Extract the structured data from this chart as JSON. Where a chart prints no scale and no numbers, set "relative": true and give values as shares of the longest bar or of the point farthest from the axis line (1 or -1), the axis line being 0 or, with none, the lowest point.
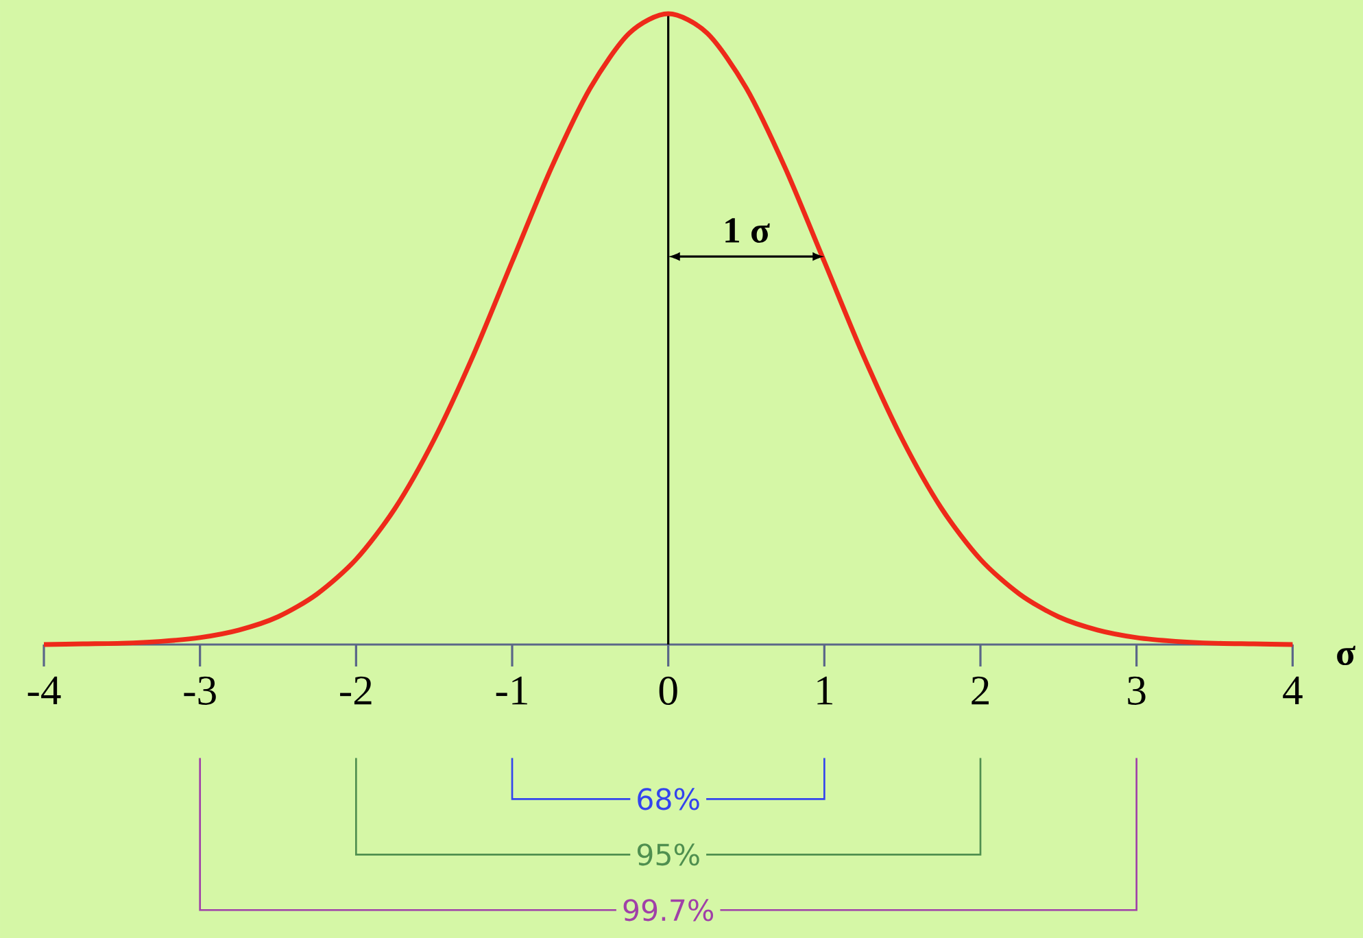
{
  "chart_data": {
    "type": "line",
    "relative": true,
    "color": "#ee2a1a",
    "xlabel": "σ",
    "x": [
      -4,
      -3.75,
      -3.5,
      -3.25,
      -3,
      -2.75,
      -2.5,
      -2.25,
      -2,
      -1.75,
      -1.5,
      -1.25,
      -1,
      -0.75,
      -0.5,
      -0.25,
      0,
      0.25,
      0.5,
      0.75,
      1,
      1.25,
      1.5,
      1.75,
      2,
      2.25,
      2.5,
      2.75,
      3,
      3.25,
      3.5,
      3.75,
      4
    ],
    "values": [
      0,
      0.001,
      0.002,
      0.005,
      0.011,
      0.023,
      0.044,
      0.08,
      0.135,
      0.216,
      0.325,
      0.458,
      0.607,
      0.755,
      0.882,
      0.969,
      1,
      0.969,
      0.882,
      0.755,
      0.607,
      0.458,
      0.325,
      0.216,
      0.135,
      0.08,
      0.044,
      0.023,
      0.011,
      0.005,
      0.002,
      0.001,
      0
    ],
    "xlim": [
      -4,
      4
    ],
    "xticks": [
      -4,
      -3,
      -2,
      -1,
      0,
      1,
      2,
      3,
      4
    ],
    "marker": "none",
    "line_style": "solid",
    "grid": false,
    "ref_lines": [
      {
        "axis": "x",
        "value": 0,
        "color": "#000000"
      }
    ],
    "annotations": [
      "1 σ",
      "68%",
      "95%",
      "99.7%"
    ]
  }
}
